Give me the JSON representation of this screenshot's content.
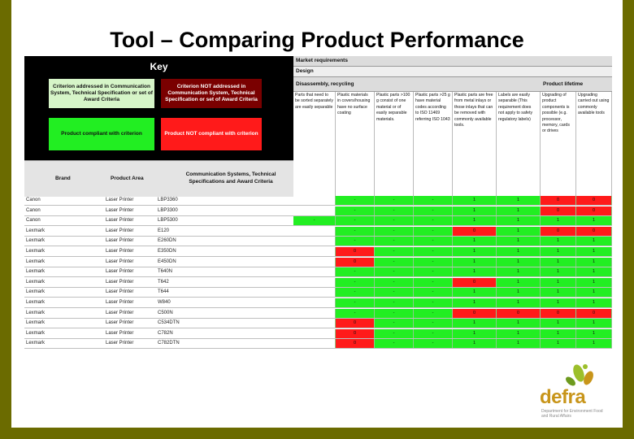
{
  "slide": {
    "title": "Tool – Comparing Product Performance",
    "key": {
      "title": "Key",
      "box_addressed": "Criterion addressed in Communication System, Technical Specification or set of Award Criteria",
      "box_not_addressed": "Criterion NOT addressed in Communication System, Technical Specification or set of Award Criteria",
      "box_compliant": "Product compliant with criterion",
      "box_not_compliant": "Product NOT compliant with criterion"
    },
    "columns": {
      "brand": "Brand",
      "product_area": "Product Area",
      "comm_systems": "Communication Systems, Technical Specifications and Award Criteria"
    },
    "header": {
      "market": "Market requirements",
      "design": "Design",
      "disassembly": "Disassembly, recycling",
      "lifetime": "Product lifetime"
    },
    "criteria": [
      "Parts that need to be sorted separately are easily separable",
      "Plastic materials in covers/housing have no surface coating",
      "Plastic parts >100 g consist of one material or of easily separable materials.",
      "Plastic parts >25 g have material codes according to ISO 11469 referring ISO 1043",
      "Plastic parts are free from metal inlays or those inlays that can be removed with commonly available tools.",
      "Labels are easily separable (This requirement does not apply to safety regulatory labels)",
      "Upgrading of product components is possible (e.g. processor, memory, cards or drives",
      "Upgrading carried out using commonly available tools"
    ],
    "rows": [
      {
        "brand": "Canon",
        "area": "Laser Printer",
        "model": "LBP3360",
        "cells": [
          "",
          "-",
          "-",
          "-",
          "1",
          "1",
          "0",
          "0"
        ]
      },
      {
        "brand": "Canon",
        "area": "Laser Printer",
        "model": "LBP3300",
        "cells": [
          "",
          "-",
          "-",
          "-",
          "1",
          "1",
          "0",
          "0"
        ]
      },
      {
        "brand": "Canon",
        "area": "Laser Printer",
        "model": "LBP5300",
        "cells": [
          "-",
          "-",
          "-",
          "-",
          "1",
          "1",
          "1",
          "1"
        ]
      },
      {
        "brand": "Lexmark",
        "area": "Laser Printer",
        "model": "E120",
        "cells": [
          "",
          "-",
          "-",
          "-",
          "0",
          "1",
          "0",
          "0"
        ]
      },
      {
        "brand": "Lexmark",
        "area": "Laser Printer",
        "model": "E260DN",
        "cells": [
          "",
          "-",
          "-",
          "-",
          "1",
          "1",
          "1",
          "1"
        ]
      },
      {
        "brand": "Lexmark",
        "area": "Laser Printer",
        "model": "E350DN",
        "cells": [
          "",
          "0",
          "-",
          "-",
          "1",
          "1",
          "1",
          "1"
        ]
      },
      {
        "brand": "Lexmark",
        "area": "Laser Printer",
        "model": "E450DN",
        "cells": [
          "",
          "0",
          "-",
          "-",
          "1",
          "1",
          "1",
          "1"
        ]
      },
      {
        "brand": "Lexmark",
        "area": "Laser Printer",
        "model": "T640N",
        "cells": [
          "",
          "-",
          "-",
          "-",
          "1",
          "1",
          "1",
          "1"
        ]
      },
      {
        "brand": "Lexmark",
        "area": "Laser Printer",
        "model": "T642",
        "cells": [
          "",
          "-",
          "-",
          "-",
          "0",
          "1",
          "1",
          "1"
        ]
      },
      {
        "brand": "Lexmark",
        "area": "Laser Printer",
        "model": "T644",
        "cells": [
          "",
          "-",
          "-",
          "-",
          "1",
          "1",
          "1",
          "1"
        ]
      },
      {
        "brand": "Lexmark",
        "area": "Laser Printer",
        "model": "W840",
        "cells": [
          "",
          "-",
          "-",
          "-",
          "1",
          "1",
          "1",
          "1"
        ]
      },
      {
        "brand": "Lexmark",
        "area": "Laser Printer",
        "model": "C500N",
        "cells": [
          "",
          "-",
          "-",
          "-",
          "0",
          "0",
          "0",
          "0"
        ]
      },
      {
        "brand": "Lexmark",
        "area": "Laser Printer",
        "model": "C534DTN",
        "cells": [
          "",
          "0",
          "-",
          "-",
          "1",
          "1",
          "1",
          "1"
        ]
      },
      {
        "brand": "Lexmark",
        "area": "Laser Printer",
        "model": "C782N",
        "cells": [
          "",
          "0",
          "-",
          "-",
          "1",
          "1",
          "1",
          "1"
        ]
      },
      {
        "brand": "Lexmark",
        "area": "Laser Printer",
        "model": "C782DTN",
        "cells": [
          "",
          "0",
          "-",
          "-",
          "1",
          "1",
          "1",
          "1"
        ]
      }
    ],
    "logo": {
      "word": "defra",
      "sub": "Department for Environment Food and Rural Affairs"
    },
    "colors": {
      "compliant": "#22ee22",
      "not_compliant": "#ff1a1a",
      "frame": "#6b6b00"
    }
  }
}
